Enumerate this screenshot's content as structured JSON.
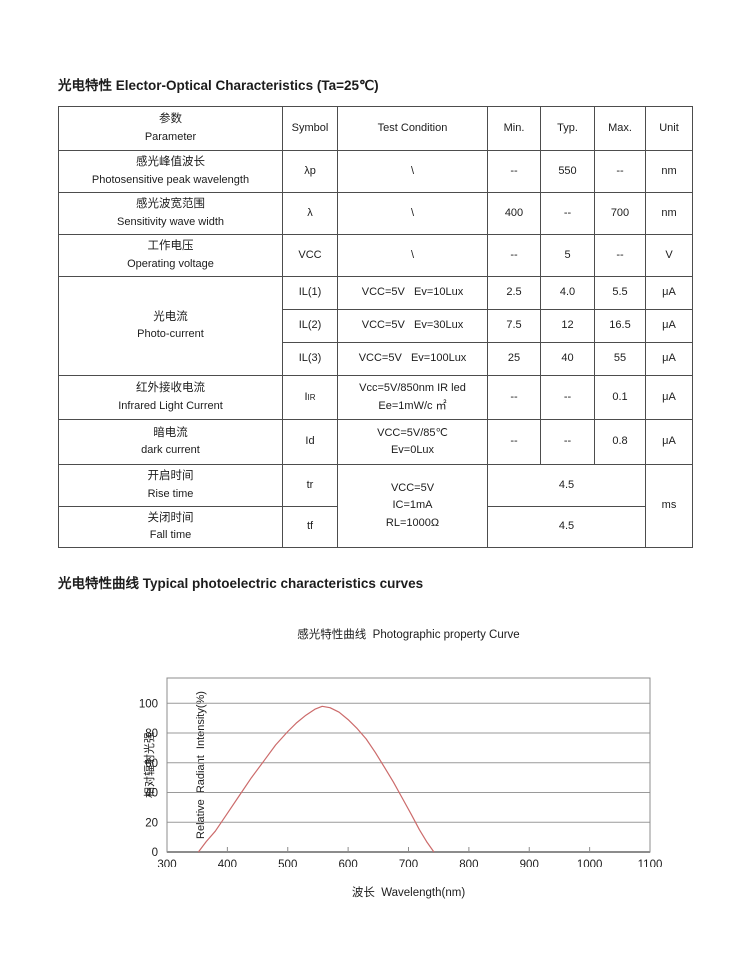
{
  "page": {
    "section1_title_zh": "光电特性",
    "section1_title_en": " Elector-Optical Characteristics (Ta=25℃)",
    "section2_title_zh": "光电特性曲线",
    "section2_title_en": " Typical photoelectric characteristics curves"
  },
  "table": {
    "headers": {
      "param_zh": "参数",
      "param_en": "Parameter",
      "symbol": "Symbol",
      "condition": "Test Condition",
      "min": "Min.",
      "typ": "Typ.",
      "max": "Max.",
      "unit": "Unit"
    },
    "rows": [
      {
        "param_zh": "感光峰值波长",
        "param_en": "Photosensitive peak wavelength",
        "symbol": "λp",
        "condition": "\\",
        "min": "--",
        "typ": "550",
        "max": "--",
        "unit": "nm"
      },
      {
        "param_zh": "感光波宽范围",
        "param_en": "Sensitivity wave width",
        "symbol": "λ",
        "condition": "\\",
        "min": "400",
        "typ": "--",
        "max": "700",
        "unit": "nm"
      },
      {
        "param_zh": "工作电压",
        "param_en": "Operating voltage",
        "symbol": "VCC",
        "condition": "\\",
        "min": "--",
        "typ": "5",
        "max": "--",
        "unit": "V"
      },
      {
        "param_zh": "光电流",
        "param_en": "Photo-current",
        "symbol": "IL(1)",
        "condition": "VCC=5V   Ev=10Lux",
        "min": "2.5",
        "typ": "4.0",
        "max": "5.5",
        "unit": "μA"
      },
      {
        "symbol": "IL(2)",
        "condition": "VCC=5V   Ev=30Lux",
        "min": "7.5",
        "typ": "12",
        "max": "16.5",
        "unit": "μA"
      },
      {
        "symbol": "IL(3)",
        "condition": "VCC=5V   Ev=100Lux",
        "min": "25",
        "typ": "40",
        "max": "55",
        "unit": "μA"
      },
      {
        "param_zh": "红外接收电流",
        "param_en": "Infrared Light Current",
        "symbol_main": "I",
        "symbol_sub": "IR",
        "condition_line1": "Vcc=5V/850nm IR led",
        "condition_line2": "Ee=1mW/c ㎡",
        "min": "--",
        "typ": "--",
        "max": "0.1",
        "unit": "μA"
      },
      {
        "param_zh": "暗电流",
        "param_en": "dark current",
        "symbol": "Id",
        "condition_line1": "VCC=5V/85℃",
        "condition_line2": "Ev=0Lux",
        "min": "--",
        "typ": "--",
        "max": "0.8",
        "unit": "μA"
      },
      {
        "param_zh": "开启时间",
        "param_en": "Rise time",
        "symbol": "tr",
        "value": "4.5"
      },
      {
        "param_zh": "关闭时间",
        "param_en": "Fall time",
        "symbol": "tf",
        "value": "4.5"
      }
    ],
    "shared_condition": {
      "line1": "VCC=5V",
      "line2": "IC=1mA",
      "line3": "RL=1000Ω"
    },
    "shared_unit": "ms"
  },
  "chart_data": {
    "type": "line",
    "title": "感光特性曲线  Photographic property Curve",
    "xlabel": "波长  Wavelength(nm)",
    "ylabel_zh": "相对辐射光强",
    "ylabel_en": "Relative  Radiant  Intensity(%)",
    "xlim": [
      300,
      1100
    ],
    "ylim": [
      0,
      117
    ],
    "x_ticks": [
      300,
      400,
      500,
      600,
      700,
      800,
      900,
      1000,
      1100
    ],
    "y_ticks": [
      0,
      20,
      40,
      60,
      80,
      100
    ],
    "grid": "horizontal-only",
    "legend": "none",
    "colors": {
      "curve": "#cc6b6b",
      "grid": "#9a9a9a",
      "frame": "#8c8c8c"
    },
    "series": [
      {
        "name": "relative-radiant-intensity",
        "points": [
          [
            352,
            0
          ],
          [
            365,
            7
          ],
          [
            380,
            14
          ],
          [
            400,
            26
          ],
          [
            420,
            38
          ],
          [
            440,
            50
          ],
          [
            460,
            61
          ],
          [
            480,
            72
          ],
          [
            500,
            81
          ],
          [
            515,
            87
          ],
          [
            530,
            92
          ],
          [
            545,
            96
          ],
          [
            557,
            98
          ],
          [
            570,
            97
          ],
          [
            585,
            94
          ],
          [
            600,
            89
          ],
          [
            615,
            83
          ],
          [
            630,
            76
          ],
          [
            645,
            67
          ],
          [
            660,
            57
          ],
          [
            675,
            47
          ],
          [
            690,
            36
          ],
          [
            705,
            25
          ],
          [
            718,
            15
          ],
          [
            730,
            7
          ],
          [
            742,
            0
          ]
        ]
      }
    ]
  }
}
